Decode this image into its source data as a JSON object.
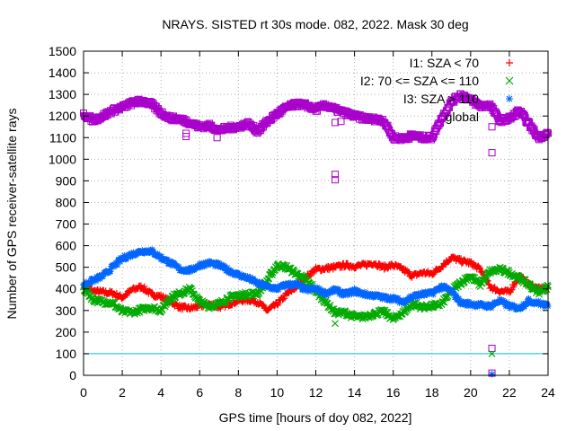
{
  "chart_data": {
    "type": "scatter",
    "title": "NRAYS. SISTED rt 30s mode. 082, 2022. Mask 30 deg",
    "xlabel": "GPS time [hours of doy 082, 2022]",
    "ylabel": "Number of GPS receiver-satellite rays",
    "xlim": [
      0,
      24
    ],
    "ylim": [
      0,
      1500
    ],
    "xticks": [
      0,
      2,
      4,
      6,
      8,
      10,
      12,
      14,
      16,
      18,
      20,
      22,
      24
    ],
    "yticks": [
      0,
      100,
      200,
      300,
      400,
      500,
      600,
      700,
      800,
      900,
      1000,
      1100,
      1200,
      1300,
      1400,
      1500
    ],
    "grid": true,
    "legend_position": "top-right",
    "threshold_line": {
      "y": 100,
      "color": "#00c8d7"
    },
    "series": [
      {
        "name": "I1: SZA < 70",
        "marker": "+",
        "color": "#ff0000",
        "x": [
          0,
          0.5,
          1,
          1.5,
          2,
          2.5,
          3,
          3.5,
          4,
          4.5,
          5,
          5.5,
          6,
          6.5,
          7,
          7.5,
          8,
          8.5,
          9,
          9.5,
          10,
          10.5,
          11,
          11.5,
          12,
          12.5,
          13,
          13.5,
          14,
          14.5,
          15,
          15.5,
          16,
          16.5,
          17,
          17.5,
          18,
          18.5,
          19,
          19.5,
          20,
          20.5,
          21,
          21.5,
          22,
          22.5,
          23,
          23.5,
          24
        ],
        "y": [
          410,
          390,
          385,
          380,
          360,
          395,
          410,
          375,
          365,
          340,
          315,
          310,
          320,
          330,
          315,
          330,
          345,
          350,
          340,
          300,
          330,
          375,
          410,
          455,
          490,
          495,
          500,
          510,
          505,
          510,
          520,
          500,
          510,
          490,
          460,
          475,
          470,
          505,
          545,
          530,
          520,
          490,
          410,
          390,
          385,
          460,
          420,
          400,
          405
        ]
      },
      {
        "name": "I2: 70 <= SZA <= 110",
        "marker": "x",
        "color": "#00aa00",
        "x": [
          0,
          0.5,
          1,
          1.5,
          2,
          2.5,
          3,
          3.5,
          4,
          4.5,
          5,
          5.5,
          6,
          6.5,
          7,
          7.5,
          8,
          8.5,
          9,
          9.5,
          10,
          10.5,
          11,
          11.5,
          12,
          12.5,
          13,
          13.5,
          14,
          14.5,
          15,
          15.5,
          16,
          16.5,
          17,
          17.5,
          18,
          18.5,
          19,
          19.5,
          20,
          20.5,
          21,
          21.5,
          22,
          22.5,
          23,
          23.5,
          24
        ],
        "y": [
          405,
          350,
          340,
          335,
          295,
          290,
          305,
          315,
          300,
          360,
          380,
          400,
          340,
          320,
          330,
          360,
          370,
          375,
          380,
          440,
          510,
          500,
          470,
          440,
          390,
          340,
          290,
          290,
          270,
          270,
          285,
          295,
          260,
          290,
          330,
          315,
          320,
          330,
          390,
          430,
          460,
          420,
          480,
          490,
          475,
          450,
          420,
          385,
          410
        ]
      },
      {
        "name": "I3: SZA > 110",
        "marker": "*",
        "color": "#0066ff",
        "x": [
          0,
          0.5,
          1,
          1.5,
          2,
          2.5,
          3,
          3.5,
          4,
          4.5,
          5,
          5.5,
          6,
          6.5,
          7,
          7.5,
          8,
          8.5,
          9,
          9.5,
          10,
          10.5,
          11,
          11.5,
          12,
          12.5,
          13,
          13.5,
          14,
          14.5,
          15,
          15.5,
          16,
          16.5,
          17,
          17.5,
          18,
          18.5,
          19,
          19.5,
          20,
          20.5,
          21,
          21.5,
          22,
          22.5,
          23,
          23.5,
          24
        ],
        "y": [
          420,
          440,
          460,
          500,
          540,
          560,
          575,
          575,
          545,
          520,
          490,
          485,
          510,
          520,
          510,
          485,
          465,
          450,
          425,
          410,
          400,
          420,
          420,
          395,
          400,
          380,
          395,
          375,
          390,
          375,
          370,
          360,
          355,
          340,
          365,
          375,
          380,
          410,
          390,
          335,
          330,
          325,
          320,
          345,
          320,
          310,
          345,
          335,
          320
        ]
      },
      {
        "name": "global",
        "marker": "square",
        "color": "#aa00cc",
        "x": [
          0,
          0.5,
          1,
          1.5,
          2,
          2.5,
          3,
          3.5,
          4,
          4.5,
          5,
          5.5,
          6,
          6.5,
          7,
          7.5,
          8,
          8.5,
          9,
          9.5,
          10,
          10.5,
          11,
          11.5,
          12,
          12.5,
          13,
          13.5,
          14,
          14.5,
          15,
          15.5,
          16,
          16.5,
          17,
          17.5,
          18,
          18.5,
          19,
          19.5,
          20,
          20.5,
          21,
          21.5,
          22,
          22.5,
          23,
          23.5,
          24
        ],
        "y": [
          1210,
          1180,
          1200,
          1225,
          1240,
          1260,
          1270,
          1255,
          1215,
          1190,
          1185,
          1170,
          1150,
          1155,
          1135,
          1145,
          1150,
          1165,
          1130,
          1175,
          1210,
          1240,
          1255,
          1250,
          1230,
          1250,
          1230,
          1215,
          1200,
          1190,
          1185,
          1180,
          1100,
          1095,
          1110,
          1100,
          1100,
          1190,
          1265,
          1300,
          1275,
          1245,
          1250,
          1180,
          1185,
          1225,
          1165,
          1100,
          1120
        ]
      }
    ],
    "outliers": [
      {
        "series": "global",
        "x": 5.3,
        "y": 1120
      },
      {
        "series": "global",
        "x": 5.3,
        "y": 1105
      },
      {
        "series": "global",
        "x": 6.9,
        "y": 1100
      },
      {
        "series": "global",
        "x": 13.0,
        "y": 930
      },
      {
        "series": "global",
        "x": 13.0,
        "y": 905
      },
      {
        "series": "global",
        "x": 13.0,
        "y": 1170
      },
      {
        "series": "global",
        "x": 13.3,
        "y": 1175
      },
      {
        "series": "global",
        "x": 21.1,
        "y": 1030
      },
      {
        "series": "global",
        "x": 21.1,
        "y": 1150
      },
      {
        "series": "global",
        "x": 21.1,
        "y": 125
      },
      {
        "series": "global",
        "x": 21.1,
        "y": 10
      },
      {
        "series": "I2: 70 <= SZA <= 110",
        "x": 13.0,
        "y": 240
      },
      {
        "series": "I2: 70 <= SZA <= 110",
        "x": 21.1,
        "y": 100
      },
      {
        "series": "I3: SZA > 110",
        "x": 13.0,
        "y": 400
      },
      {
        "series": "I3: SZA > 110",
        "x": 21.1,
        "y": 5
      }
    ]
  }
}
